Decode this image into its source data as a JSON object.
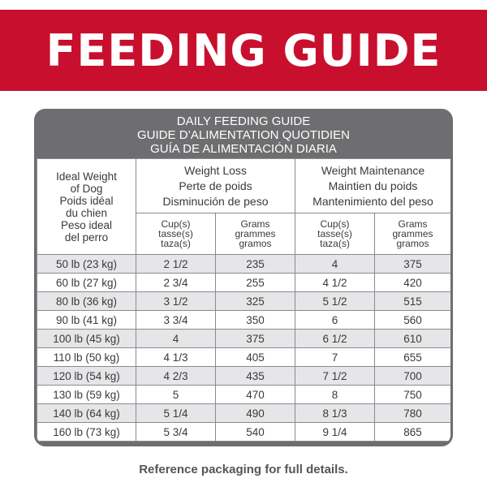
{
  "banner": {
    "title": "FEEDING GUIDE"
  },
  "table": {
    "title_lines": [
      "DAILY FEEDING GUIDE",
      "GUIDE D’ALIMENTATION QUOTIDIEN",
      "GUÍA DE ALIMENTACIÓN DIARIA"
    ],
    "weight_header": [
      "Ideal Weight",
      "of Dog",
      "Poids idéal",
      "du chien",
      "Peso ideal",
      "del perro"
    ],
    "loss_header": [
      "Weight Loss",
      "Perte de poids",
      "Disminución de peso"
    ],
    "maint_header": [
      "Weight Maintenance",
      "Maintien du poids",
      "Mantenimiento del peso"
    ],
    "cup_header": [
      "Cup(s)",
      "tasse(s)",
      "taza(s)"
    ],
    "grams_header": [
      "Grams",
      "grammes",
      "gramos"
    ],
    "rows": [
      {
        "weight": "50 lb (23 kg)",
        "loss_cups": "2 1/2",
        "loss_grams": "235",
        "maint_cups": "4",
        "maint_grams": "375"
      },
      {
        "weight": "60 lb (27 kg)",
        "loss_cups": "2 3/4",
        "loss_grams": "255",
        "maint_cups": "4 1/2",
        "maint_grams": "420"
      },
      {
        "weight": "80 lb (36 kg)",
        "loss_cups": "3 1/2",
        "loss_grams": "325",
        "maint_cups": "5 1/2",
        "maint_grams": "515"
      },
      {
        "weight": "90 lb (41 kg)",
        "loss_cups": "3 3/4",
        "loss_grams": "350",
        "maint_cups": "6",
        "maint_grams": "560"
      },
      {
        "weight": "100 lb (45 kg)",
        "loss_cups": "4",
        "loss_grams": "375",
        "maint_cups": "6 1/2",
        "maint_grams": "610"
      },
      {
        "weight": "110 lb (50 kg)",
        "loss_cups": "4 1/3",
        "loss_grams": "405",
        "maint_cups": "7",
        "maint_grams": "655"
      },
      {
        "weight": "120 lb (54 kg)",
        "loss_cups": "4 2/3",
        "loss_grams": "435",
        "maint_cups": "7 1/2",
        "maint_grams": "700"
      },
      {
        "weight": "130 lb (59 kg)",
        "loss_cups": "5",
        "loss_grams": "470",
        "maint_cups": "8",
        "maint_grams": "750"
      },
      {
        "weight": "140 lb (64 kg)",
        "loss_cups": "5 1/4",
        "loss_grams": "490",
        "maint_cups": "8 1/3",
        "maint_grams": "780"
      },
      {
        "weight": "160 lb (73 kg)",
        "loss_cups": "5 3/4",
        "loss_grams": "540",
        "maint_cups": "9 1/4",
        "maint_grams": "865"
      }
    ]
  },
  "footer": {
    "note": "Reference packaging for full details."
  },
  "colors": {
    "banner_red": "#c8102e",
    "table_gray": "#6e6e70",
    "row_stripe": "#e6e6e8"
  }
}
